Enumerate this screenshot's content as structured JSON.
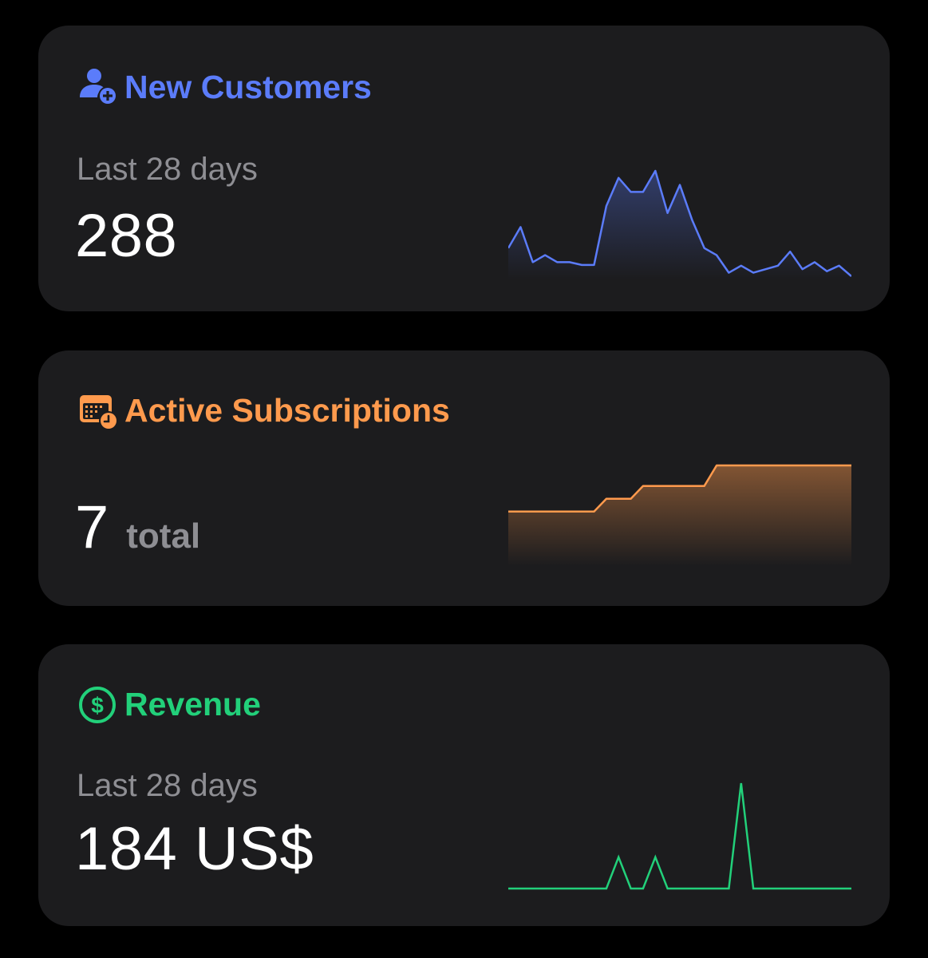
{
  "new_customers": {
    "title": "New Customers",
    "icon": "person-add-icon",
    "color": "#5b7cfa",
    "caption": "Last 28 days",
    "value": "288",
    "sparkline": [
      4,
      7,
      2,
      3,
      2,
      2,
      1.6,
      1.6,
      10,
      14,
      12,
      12,
      15,
      9,
      13,
      8,
      4,
      3,
      0.5,
      1.5,
      0.5,
      1,
      1.5,
      3.5,
      1,
      2,
      0.7,
      1.5,
      0
    ]
  },
  "active_subscriptions": {
    "title": "Active Subscriptions",
    "icon": "calendar-clock-icon",
    "color": "#ff9a4d",
    "value": "7",
    "unit": "total",
    "sparkline": [
      2,
      2,
      2,
      2,
      2,
      2,
      2,
      2,
      2.5,
      2.5,
      2.5,
      3,
      3,
      3,
      3,
      3,
      3,
      3.8,
      3.8,
      3.8,
      3.8,
      3.8,
      3.8,
      3.8,
      3.8,
      3.8,
      3.8,
      3.8,
      3.8
    ]
  },
  "revenue": {
    "title": "Revenue",
    "icon": "dollar-circle-icon",
    "color": "#22d07a",
    "caption": "Last 28 days",
    "value": "184 US$",
    "sparkline": [
      0,
      0,
      0,
      0,
      0,
      0,
      0,
      0,
      0,
      25,
      0,
      0,
      25,
      0,
      0,
      0,
      0,
      0,
      0,
      84,
      0,
      0,
      0,
      0,
      0,
      0,
      0,
      0,
      0
    ]
  }
}
